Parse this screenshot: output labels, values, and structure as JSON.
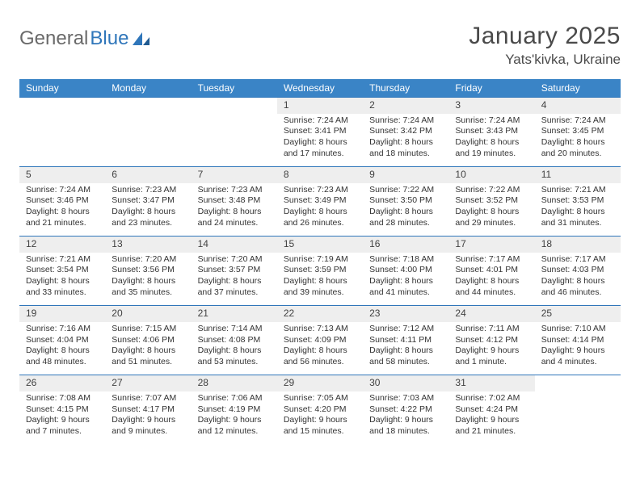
{
  "brand": {
    "part1": "General",
    "part2": "Blue"
  },
  "title": "January 2025",
  "location": "Yats'kivka, Ukraine",
  "colors": {
    "header_bg": "#3a84c6",
    "header_text": "#ffffff",
    "daynum_bg": "#eeeeee",
    "border": "#2f76ba",
    "title_color": "#4a4a4a",
    "body_text": "#333333"
  },
  "typography": {
    "title_fontsize": 30,
    "location_fontsize": 17,
    "weekday_fontsize": 12,
    "daynum_fontsize": 12,
    "cell_fontsize": 10.5
  },
  "weekdays": [
    "Sunday",
    "Monday",
    "Tuesday",
    "Wednesday",
    "Thursday",
    "Friday",
    "Saturday"
  ],
  "weeks": [
    [
      null,
      null,
      null,
      {
        "n": "1",
        "sunrise": "7:24 AM",
        "sunset": "3:41 PM",
        "daylight": "8 hours and 17 minutes."
      },
      {
        "n": "2",
        "sunrise": "7:24 AM",
        "sunset": "3:42 PM",
        "daylight": "8 hours and 18 minutes."
      },
      {
        "n": "3",
        "sunrise": "7:24 AM",
        "sunset": "3:43 PM",
        "daylight": "8 hours and 19 minutes."
      },
      {
        "n": "4",
        "sunrise": "7:24 AM",
        "sunset": "3:45 PM",
        "daylight": "8 hours and 20 minutes."
      }
    ],
    [
      {
        "n": "5",
        "sunrise": "7:24 AM",
        "sunset": "3:46 PM",
        "daylight": "8 hours and 21 minutes."
      },
      {
        "n": "6",
        "sunrise": "7:23 AM",
        "sunset": "3:47 PM",
        "daylight": "8 hours and 23 minutes."
      },
      {
        "n": "7",
        "sunrise": "7:23 AM",
        "sunset": "3:48 PM",
        "daylight": "8 hours and 24 minutes."
      },
      {
        "n": "8",
        "sunrise": "7:23 AM",
        "sunset": "3:49 PM",
        "daylight": "8 hours and 26 minutes."
      },
      {
        "n": "9",
        "sunrise": "7:22 AM",
        "sunset": "3:50 PM",
        "daylight": "8 hours and 28 minutes."
      },
      {
        "n": "10",
        "sunrise": "7:22 AM",
        "sunset": "3:52 PM",
        "daylight": "8 hours and 29 minutes."
      },
      {
        "n": "11",
        "sunrise": "7:21 AM",
        "sunset": "3:53 PM",
        "daylight": "8 hours and 31 minutes."
      }
    ],
    [
      {
        "n": "12",
        "sunrise": "7:21 AM",
        "sunset": "3:54 PM",
        "daylight": "8 hours and 33 minutes."
      },
      {
        "n": "13",
        "sunrise": "7:20 AM",
        "sunset": "3:56 PM",
        "daylight": "8 hours and 35 minutes."
      },
      {
        "n": "14",
        "sunrise": "7:20 AM",
        "sunset": "3:57 PM",
        "daylight": "8 hours and 37 minutes."
      },
      {
        "n": "15",
        "sunrise": "7:19 AM",
        "sunset": "3:59 PM",
        "daylight": "8 hours and 39 minutes."
      },
      {
        "n": "16",
        "sunrise": "7:18 AM",
        "sunset": "4:00 PM",
        "daylight": "8 hours and 41 minutes."
      },
      {
        "n": "17",
        "sunrise": "7:17 AM",
        "sunset": "4:01 PM",
        "daylight": "8 hours and 44 minutes."
      },
      {
        "n": "18",
        "sunrise": "7:17 AM",
        "sunset": "4:03 PM",
        "daylight": "8 hours and 46 minutes."
      }
    ],
    [
      {
        "n": "19",
        "sunrise": "7:16 AM",
        "sunset": "4:04 PM",
        "daylight": "8 hours and 48 minutes."
      },
      {
        "n": "20",
        "sunrise": "7:15 AM",
        "sunset": "4:06 PM",
        "daylight": "8 hours and 51 minutes."
      },
      {
        "n": "21",
        "sunrise": "7:14 AM",
        "sunset": "4:08 PM",
        "daylight": "8 hours and 53 minutes."
      },
      {
        "n": "22",
        "sunrise": "7:13 AM",
        "sunset": "4:09 PM",
        "daylight": "8 hours and 56 minutes."
      },
      {
        "n": "23",
        "sunrise": "7:12 AM",
        "sunset": "4:11 PM",
        "daylight": "8 hours and 58 minutes."
      },
      {
        "n": "24",
        "sunrise": "7:11 AM",
        "sunset": "4:12 PM",
        "daylight": "9 hours and 1 minute."
      },
      {
        "n": "25",
        "sunrise": "7:10 AM",
        "sunset": "4:14 PM",
        "daylight": "9 hours and 4 minutes."
      }
    ],
    [
      {
        "n": "26",
        "sunrise": "7:08 AM",
        "sunset": "4:15 PM",
        "daylight": "9 hours and 7 minutes."
      },
      {
        "n": "27",
        "sunrise": "7:07 AM",
        "sunset": "4:17 PM",
        "daylight": "9 hours and 9 minutes."
      },
      {
        "n": "28",
        "sunrise": "7:06 AM",
        "sunset": "4:19 PM",
        "daylight": "9 hours and 12 minutes."
      },
      {
        "n": "29",
        "sunrise": "7:05 AM",
        "sunset": "4:20 PM",
        "daylight": "9 hours and 15 minutes."
      },
      {
        "n": "30",
        "sunrise": "7:03 AM",
        "sunset": "4:22 PM",
        "daylight": "9 hours and 18 minutes."
      },
      {
        "n": "31",
        "sunrise": "7:02 AM",
        "sunset": "4:24 PM",
        "daylight": "9 hours and 21 minutes."
      },
      null
    ]
  ],
  "labels": {
    "sunrise": "Sunrise:",
    "sunset": "Sunset:",
    "daylight": "Daylight:"
  }
}
